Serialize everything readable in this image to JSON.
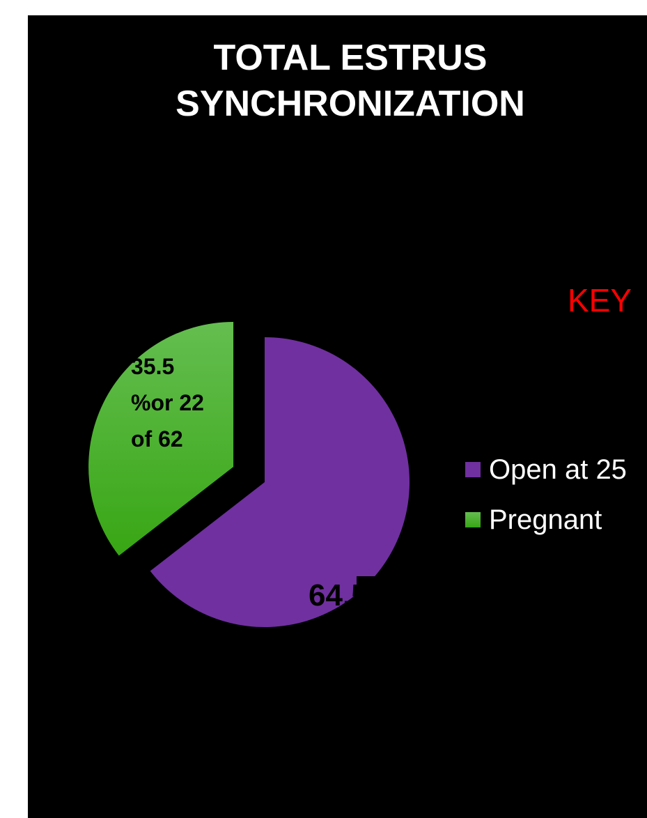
{
  "chart_data": {
    "type": "pie",
    "title": "TOTAL ESTRUS\nSYNCHRONIZATION",
    "annotation": "KEY",
    "categories": [
      "Open at 25",
      "Pregnant"
    ],
    "values": [
      64.5,
      35.5
    ],
    "value_labels": [
      "64.5",
      "35.5\n%or 22\nof 62"
    ],
    "colors": [
      "#7030a0",
      "#46b02a"
    ],
    "exploded": [
      false,
      true
    ]
  }
}
